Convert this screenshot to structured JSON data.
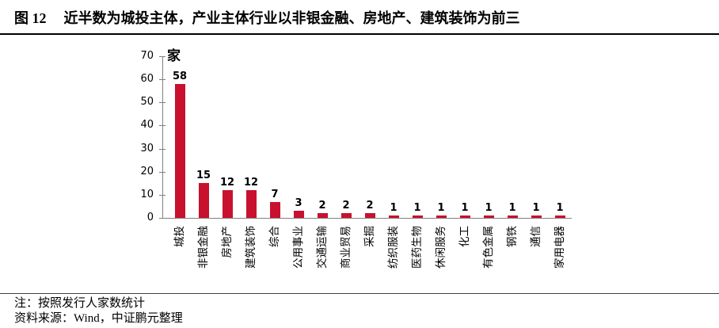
{
  "figure": {
    "label": "图 12",
    "title": "近半数为城投主体，产业主体行业以非银金融、房地产、建筑装饰为前三"
  },
  "chart_data": {
    "type": "bar",
    "unit_label": "家",
    "categories": [
      "城投",
      "非银金融",
      "房地产",
      "建筑装饰",
      "综合",
      "公用事业",
      "交通运输",
      "商业贸易",
      "采掘",
      "纺织服装",
      "医药生物",
      "休闲服务",
      "化工",
      "有色金属",
      "钢铁",
      "通信",
      "家用电器"
    ],
    "values": [
      58,
      15,
      12,
      12,
      7,
      3,
      2,
      2,
      2,
      1,
      1,
      1,
      1,
      1,
      1,
      1,
      1
    ],
    "ylim": [
      0,
      70
    ],
    "yticks": [
      0,
      10,
      20,
      30,
      40,
      50,
      60,
      70
    ],
    "grid": false,
    "legend_position": "none",
    "bar_color": "#C8112E",
    "axis_color": "#808080",
    "value_label_color": "#000000"
  },
  "notes": {
    "note": "注：按照发行人家数统计",
    "source": "资料来源：Wind，中证鹏元整理"
  }
}
